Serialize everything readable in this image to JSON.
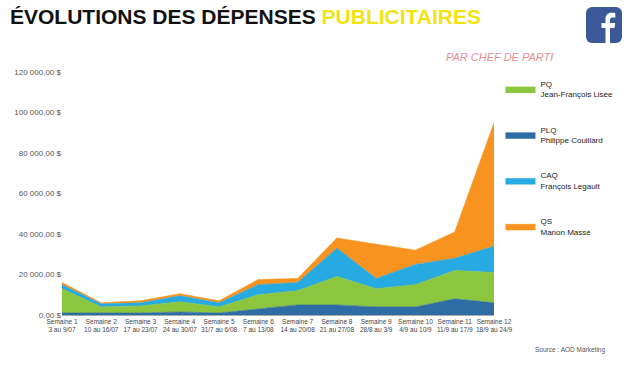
{
  "chart_data": {
    "type": "area",
    "title": "ÉVOLUTIONS DES DÉPENSES PUBLICITAIRES",
    "subtitle": "PAR CHEF DE PARTI",
    "source": "Source : AOD Marketing",
    "categories": [
      "Semaine 1\n3 au 9/07",
      "Semaine 2\n10 au 16/07",
      "Semaine 3\n17 au 23/07",
      "Semaine 4\n24 au 30/07",
      "Semaine 5\n31/7 au 6/08",
      "Semaine 6\n7 au 13/08",
      "Semaine 7\n14 au 20/08",
      "Semaine 8\n21 au 27/08",
      "Semaine 9\n28/8 au 3/9",
      "Semaine 10\n4/9 au 10/9",
      "Semaine 11\n11/9 au 17/9",
      "Semaine 12\n18/9 au 24/9"
    ],
    "series": [
      {
        "name": "PLQ Philippe Couillard",
        "color": "#2e6da4",
        "values": [
          1000,
          1000,
          1000,
          1500,
          1000,
          3000,
          5000,
          5000,
          4000,
          4000,
          8000,
          6000
        ]
      },
      {
        "name": "PQ Jean-François Lisée",
        "color": "#8cc63e",
        "values": [
          12000,
          3000,
          3500,
          5000,
          3000,
          7000,
          7000,
          14000,
          9000,
          11000,
          14000,
          15000
        ]
      },
      {
        "name": "CAQ François Legault",
        "color": "#27aae1",
        "values": [
          2000,
          1500,
          1500,
          3000,
          2000,
          5000,
          4000,
          14000,
          5000,
          10000,
          6000,
          13000
        ]
      },
      {
        "name": "QS Manon Massé",
        "color": "#f7931e",
        "values": [
          1000,
          500,
          1000,
          1000,
          1000,
          2500,
          2000,
          5000,
          17000,
          7000,
          13000,
          61000
        ]
      }
    ],
    "ylim": [
      0,
      120000
    ],
    "yticks": [
      {
        "value": 0,
        "label": "0,00 $"
      },
      {
        "value": 20000,
        "label": "20 000,00 $"
      },
      {
        "value": 40000,
        "label": "40 000,00 $"
      },
      {
        "value": 60000,
        "label": "60 000,00 $"
      },
      {
        "value": 80000,
        "label": "80 000,00 $"
      },
      {
        "value": 100000,
        "label": "100 000,00 $"
      },
      {
        "value": 120000,
        "label": "120 000,00 $"
      }
    ],
    "stacked": true,
    "grid": false,
    "legend": "right"
  }
}
